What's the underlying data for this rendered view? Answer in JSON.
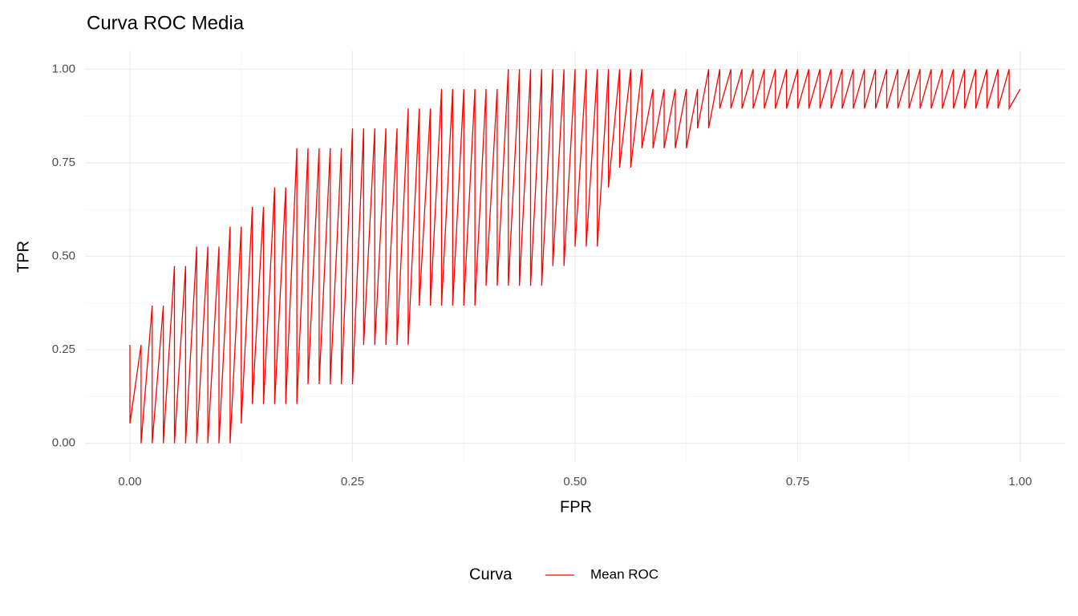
{
  "chart_data": {
    "type": "line",
    "title": "Curva ROC Media",
    "x_label": "FPR",
    "y_label": "TPR",
    "legend_title": "Curva",
    "legend_position": "bottom",
    "grid": true,
    "xlim": [
      -0.05,
      1.05
    ],
    "ylim": [
      -0.05,
      1.05
    ],
    "xticks": [
      {
        "value": 0,
        "label": "0.00"
      },
      {
        "value": 0.25,
        "label": "0.25"
      },
      {
        "value": 0.5,
        "label": "0.50"
      },
      {
        "value": 0.75,
        "label": "0.75"
      },
      {
        "value": 1,
        "label": "1.00"
      }
    ],
    "yticks": [
      {
        "value": 0,
        "label": "0.00"
      },
      {
        "value": 0.25,
        "label": "0.25"
      },
      {
        "value": 0.5,
        "label": "0.50"
      },
      {
        "value": 0.75,
        "label": "0.75"
      },
      {
        "value": 1,
        "label": "1.00"
      }
    ],
    "x": [
      0,
      0,
      0.0125,
      0.0125,
      0.025,
      0.025,
      0.0375,
      0.0375,
      0.05,
      0.05,
      0.0625,
      0.0625,
      0.075,
      0.075,
      0.0875,
      0.0875,
      0.1,
      0.1,
      0.1125,
      0.1125,
      0.125,
      0.125,
      0.1375,
      0.1375,
      0.15,
      0.15,
      0.1625,
      0.1625,
      0.175,
      0.175,
      0.1875,
      0.1875,
      0.2,
      0.2,
      0.2125,
      0.2125,
      0.225,
      0.225,
      0.2375,
      0.2375,
      0.25,
      0.25,
      0.2625,
      0.2625,
      0.275,
      0.275,
      0.2875,
      0.2875,
      0.3,
      0.3,
      0.3125,
      0.3125,
      0.325,
      0.325,
      0.3375,
      0.3375,
      0.35,
      0.35,
      0.3625,
      0.3625,
      0.375,
      0.375,
      0.3875,
      0.3875,
      0.4,
      0.4,
      0.4125,
      0.4125,
      0.425,
      0.425,
      0.4375,
      0.4375,
      0.45,
      0.45,
      0.4625,
      0.4625,
      0.475,
      0.475,
      0.4875,
      0.4875,
      0.5,
      0.5,
      0.5125,
      0.5125,
      0.525,
      0.525,
      0.5375,
      0.5375,
      0.55,
      0.55,
      0.5625,
      0.5625,
      0.575,
      0.575,
      0.5875,
      0.5875,
      0.6,
      0.6,
      0.6125,
      0.6125,
      0.625,
      0.625,
      0.6375,
      0.6375,
      0.65,
      0.65,
      0.6625,
      0.6625,
      0.675,
      0.675,
      0.6875,
      0.6875,
      0.7,
      0.7,
      0.7125,
      0.7125,
      0.725,
      0.725,
      0.7375,
      0.7375,
      0.75,
      0.75,
      0.7625,
      0.7625,
      0.775,
      0.775,
      0.7875,
      0.7875,
      0.8,
      0.8,
      0.8125,
      0.8125,
      0.825,
      0.825,
      0.8375,
      0.8375,
      0.85,
      0.85,
      0.8625,
      0.8625,
      0.875,
      0.875,
      0.8875,
      0.8875,
      0.9,
      0.9,
      0.9125,
      0.9125,
      0.925,
      0.925,
      0.9375,
      0.9375,
      0.95,
      0.95,
      0.9625,
      0.9625,
      0.975,
      0.975,
      0.9875,
      0.9875,
      1
    ],
    "series": [
      {
        "name": "Mean ROC",
        "color": "#ff0000",
        "values": [
          0.263,
          0.053,
          0.263,
          0,
          0.368,
          0,
          0.368,
          0,
          0.474,
          0,
          0.474,
          0,
          0.526,
          0,
          0.526,
          0,
          0.526,
          0,
          0.579,
          0,
          0.579,
          0.053,
          0.632,
          0.105,
          0.632,
          0.105,
          0.684,
          0.105,
          0.684,
          0.105,
          0.789,
          0.105,
          0.789,
          0.158,
          0.789,
          0.158,
          0.789,
          0.158,
          0.789,
          0.158,
          0.842,
          0.158,
          0.842,
          0.263,
          0.842,
          0.263,
          0.842,
          0.263,
          0.842,
          0.263,
          0.895,
          0.263,
          0.895,
          0.368,
          0.895,
          0.368,
          0.947,
          0.368,
          0.947,
          0.368,
          0.947,
          0.368,
          0.947,
          0.368,
          0.947,
          0.421,
          0.947,
          0.421,
          1,
          0.421,
          1,
          0.421,
          1,
          0.421,
          1,
          0.421,
          1,
          0.474,
          1,
          0.474,
          1,
          0.526,
          1,
          0.526,
          1,
          0.526,
          1,
          0.684,
          1,
          0.737,
          1,
          0.737,
          1,
          0.789,
          0.947,
          0.789,
          0.947,
          0.789,
          0.947,
          0.789,
          0.947,
          0.789,
          0.947,
          0.842,
          1,
          0.842,
          1,
          0.895,
          1,
          0.895,
          1,
          0.895,
          1,
          0.895,
          1,
          0.895,
          1,
          0.895,
          1,
          0.895,
          1,
          0.895,
          1,
          0.895,
          1,
          0.895,
          1,
          0.895,
          1,
          0.895,
          1,
          0.895,
          1,
          0.895,
          1,
          0.895,
          1,
          0.895,
          1,
          0.895,
          1,
          0.895,
          1,
          0.895,
          1,
          0.895,
          1,
          0.895,
          1,
          0.895,
          1,
          0.895,
          1,
          0.895,
          1,
          0.895,
          1,
          0.895,
          1,
          0.895,
          0.947
        ]
      }
    ]
  }
}
